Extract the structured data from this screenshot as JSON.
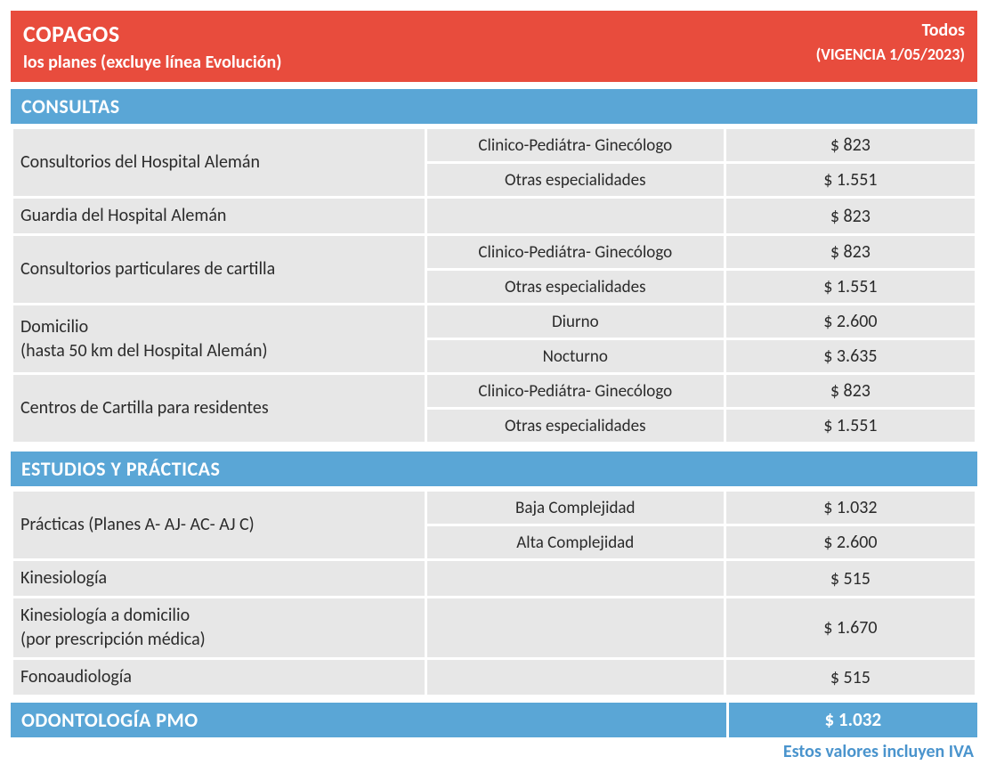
{
  "header": {
    "title": "COPAGOS",
    "subtitle": "los planes (excluye línea Evolución)",
    "right_top": "Todos",
    "right_bottom": "(VIGENCIA 1/05/2023)"
  },
  "colors": {
    "header_bg": "#e84c3d",
    "section_bg": "#5aa6d6",
    "cell_bg": "#e7e7e7",
    "text": "#2b2b2b",
    "footnote": "#4a94cd"
  },
  "sections": [
    {
      "title": "CONSULTAS",
      "rows": [
        {
          "label": "Consultorios del Hospital Alemán",
          "sub": [
            {
              "desc": "Clinico-Pediátra- Ginecólogo",
              "price": "$ 823"
            },
            {
              "desc": "Otras especialidades",
              "price": "$ 1.551"
            }
          ]
        },
        {
          "label": "Guardia del Hospital Alemán",
          "sub": [
            {
              "desc": "",
              "price": "$ 823"
            }
          ]
        },
        {
          "label": "Consultorios particulares de cartilla",
          "sub": [
            {
              "desc": "Clinico-Pediátra- Ginecólogo",
              "price": "$ 823"
            },
            {
              "desc": "Otras especialidades",
              "price": "$ 1.551"
            }
          ]
        },
        {
          "label": "Domicilio<br>(hasta 50 km del Hospital Alemán)",
          "sub": [
            {
              "desc": "Diurno",
              "price": "$ 2.600"
            },
            {
              "desc": "Nocturno",
              "price": "$ 3.635"
            }
          ]
        },
        {
          "label": "Centros de Cartilla para residentes",
          "sub": [
            {
              "desc": "Clinico-Pediátra- Ginecólogo",
              "price": "$ 823"
            },
            {
              "desc": "Otras especialidades",
              "price": "$ 1.551"
            }
          ]
        }
      ]
    },
    {
      "title": "ESTUDIOS Y PRÁCTICAS",
      "rows": [
        {
          "label": "Prácticas (Planes A- AJ- AC- AJ C)",
          "sub": [
            {
              "desc": "Baja Complejidad",
              "price": "$ 1.032"
            },
            {
              "desc": "Alta Complejidad",
              "price": "$ 2.600"
            }
          ]
        },
        {
          "label": "Kinesiología",
          "sub": [
            {
              "desc": "",
              "price": "$ 515"
            }
          ]
        },
        {
          "label": "Kinesiología a domicilio<br>(por prescripción médica)",
          "sub": [
            {
              "desc": "",
              "price": "$ 1.670"
            }
          ]
        },
        {
          "label": "Fonoaudiología",
          "sub": [
            {
              "desc": "",
              "price": "$ 515"
            }
          ]
        }
      ]
    }
  ],
  "odontologia": {
    "title": "ODONTOLOGÍA PMO",
    "price": "$ 1.032"
  },
  "footnote": "Estos valores incluyen IVA"
}
